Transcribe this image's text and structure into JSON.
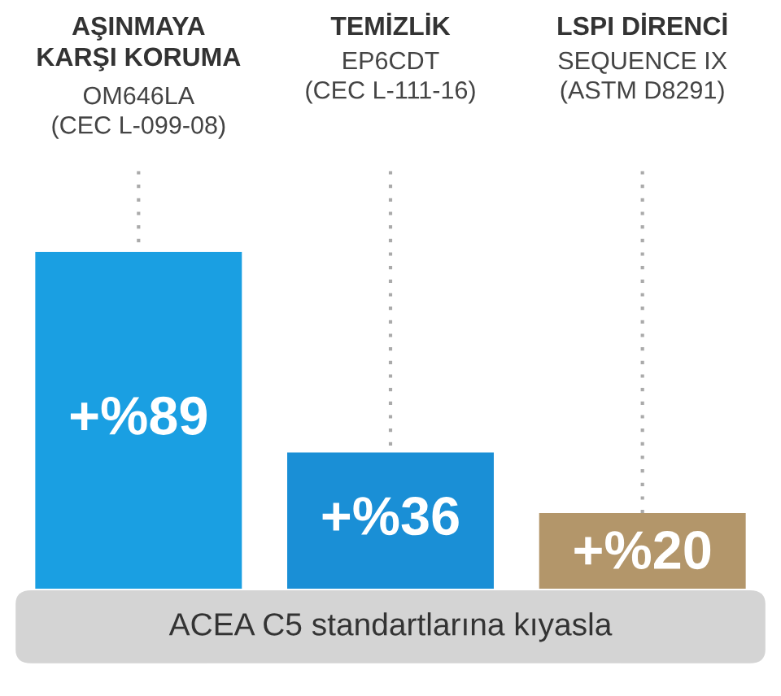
{
  "chart_data": {
    "type": "bar",
    "categories": [
      "AŞINMAYA\nKARŞI KORUMA",
      "TEMİZLİK",
      "LSPI DİRENCİ"
    ],
    "values": [
      89,
      36,
      20
    ],
    "colors": [
      "#1a9fe2",
      "#1a8fd6",
      "#b3966a"
    ],
    "value_labels": [
      "+%89",
      "+%36",
      "+%20"
    ],
    "annotations": [
      "OM646LA\n(CEC L-099-08)",
      "EP6CDT\n(CEC L-111-16)",
      "SEQUENCE IX\n(ASTM D8291)"
    ],
    "xlabel": "ACEA C5 standartlarına kıyasla",
    "grid": "x",
    "legend": false
  }
}
